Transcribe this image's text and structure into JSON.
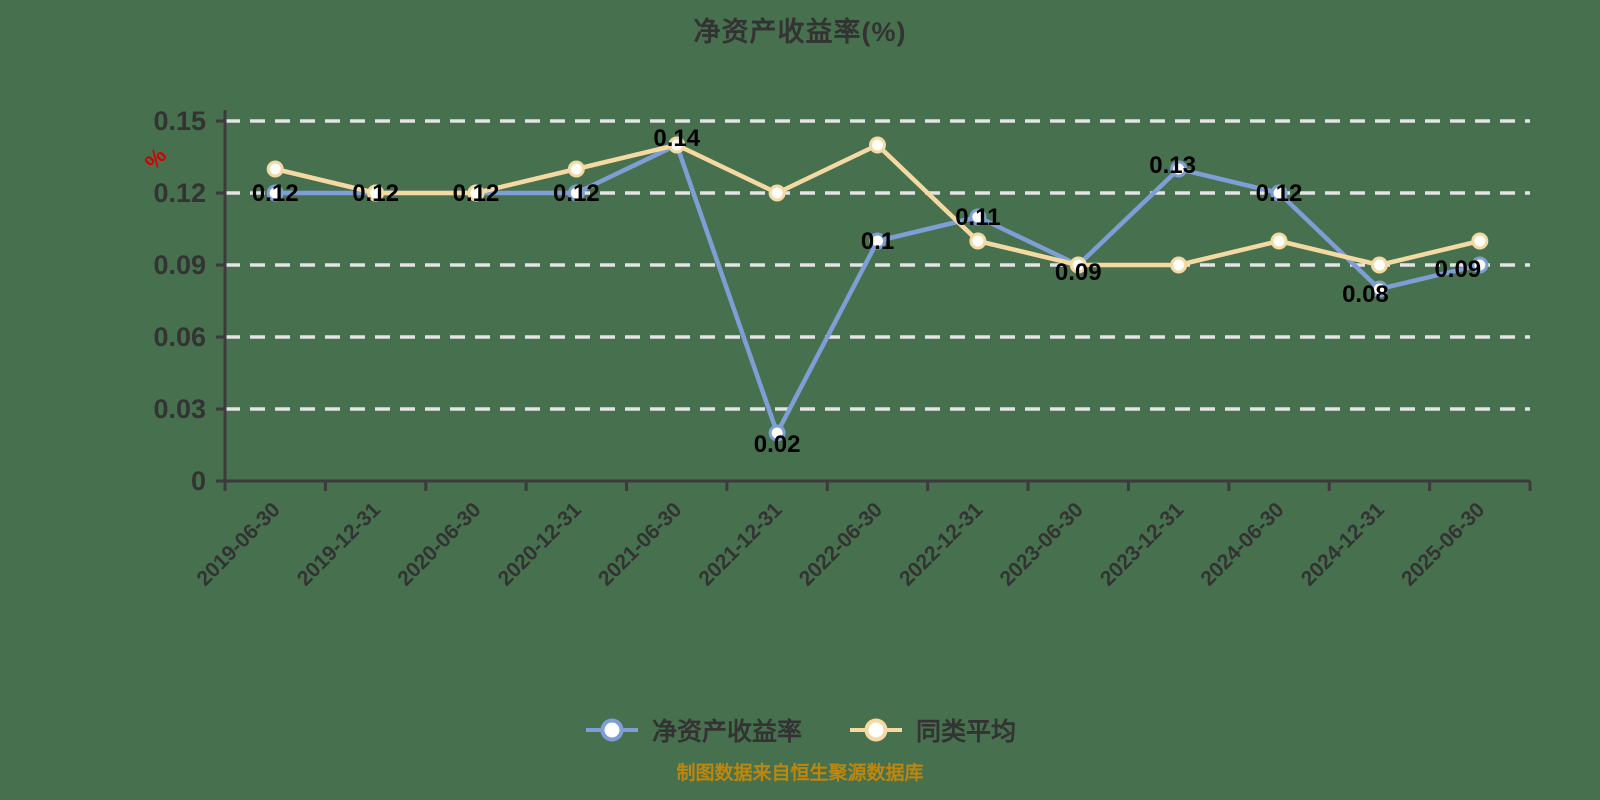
{
  "title": "净资产收益率(%)",
  "y_axis_unit": "%",
  "footer": "制图数据来自恒生聚源数据库",
  "legend": {
    "position": "bottom",
    "items": [
      {
        "label": "净资产收益率",
        "color": "#7E9ED5"
      },
      {
        "label": "同类平均",
        "color": "#F5D9A2"
      }
    ]
  },
  "colors": {
    "background": "#47714E",
    "axis": "#3B3B3B",
    "gridline": "#E3E3E3",
    "data_label": "#000000",
    "tick_label": "#333333",
    "unit_label": "#D60000",
    "footer": "#BD860C",
    "marker_fill": "#FFFEFA"
  },
  "chart_data": {
    "type": "line",
    "title": "净资产收益率(%)",
    "categories": [
      "2019-06-30",
      "2019-12-31",
      "2020-06-30",
      "2020-12-31",
      "2021-06-30",
      "2021-12-31",
      "2022-06-30",
      "2022-12-31",
      "2023-06-30",
      "2023-12-31",
      "2024-06-30",
      "2024-12-31",
      "2025-06-30"
    ],
    "series": [
      {
        "id": "roe",
        "name": "净资产收益率",
        "color": "#7E9ED5",
        "values": [
          0.12,
          0.12,
          0.12,
          0.12,
          0.14,
          0.02,
          0.1,
          0.11,
          0.09,
          0.13,
          0.12,
          0.08,
          0.09
        ],
        "labels": [
          "0.12",
          "0.12",
          "0.12",
          "0.12",
          "0.14",
          "0.02",
          "0.1",
          "0.11",
          "0.09",
          "0.13",
          "0.12",
          "0.08",
          "0.09"
        ],
        "label_offsets": [
          [
            0,
            0
          ],
          [
            0,
            0
          ],
          [
            0,
            0
          ],
          [
            0,
            0
          ],
          [
            0,
            -7
          ],
          [
            0,
            11
          ],
          [
            0,
            0
          ],
          [
            0,
            0
          ],
          [
            0,
            7
          ],
          [
            -6,
            -4
          ],
          [
            0,
            0
          ],
          [
            -14,
            5
          ],
          [
            -22,
            4
          ]
        ]
      },
      {
        "id": "peer-average",
        "name": "同类平均",
        "color": "#F5D9A2",
        "values": [
          0.13,
          0.12,
          0.12,
          0.13,
          0.14,
          0.12,
          0.14,
          0.1,
          0.09,
          0.09,
          0.1,
          0.09,
          0.1
        ]
      }
    ],
    "ylim": [
      0,
      0.15
    ],
    "y_ticks": [
      0,
      0.03,
      0.06,
      0.09,
      0.12,
      0.15
    ],
    "grid": true,
    "gridline_style": "dashed",
    "legend_position": "bottom",
    "x_label_rotation": -45
  }
}
